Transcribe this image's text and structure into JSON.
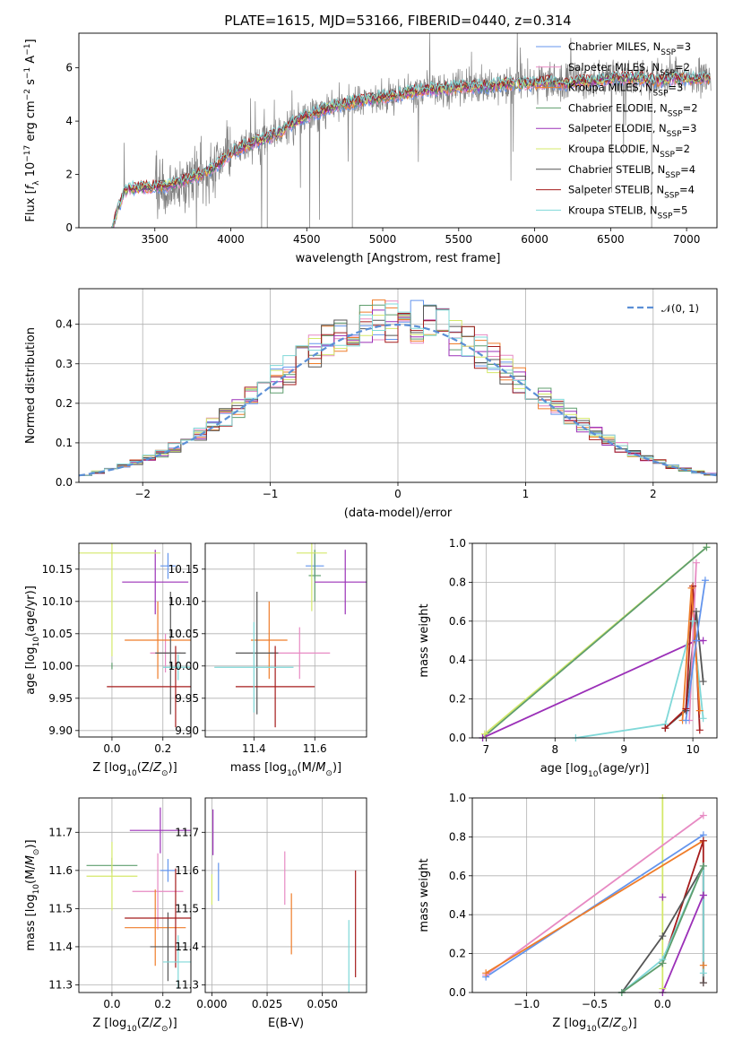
{
  "colors": {
    "Chabrier MILES": "#6495ed",
    "Salpeter MILES": "#e78ac3",
    "Kroupa MILES": "#ef7d2a",
    "Chabrier ELODIE": "#5f9e6e",
    "Salpeter ELODIE": "#9b30b8",
    "Kroupa ELODIE": "#d4e86a",
    "Chabrier STELIB": "#555555",
    "Salpeter STELIB": "#a51c1c",
    "Kroupa STELIB": "#7fd8d8"
  },
  "chart_data": [
    {
      "id": "spectrum",
      "type": "line",
      "title": "PLATE=1615, MJD=53166, FIBERID=0440, z=0.314",
      "xlabel": "wavelength [Angstrom, rest frame]",
      "ylabel": "Flux [f_λ 10^-17 erg cm^-2 s^-1 A^-1]",
      "xlim": [
        3000,
        7200
      ],
      "ylim": [
        0,
        7.3
      ],
      "xticks": [
        3500,
        4000,
        4500,
        5000,
        5500,
        6000,
        6500,
        7000
      ],
      "yticks": [
        0,
        2,
        4,
        6
      ],
      "grid": false,
      "legend_position": "top-right",
      "data_series": {
        "name": "data",
        "color": "#808080"
      },
      "continuum": {
        "x": [
          3220,
          3300,
          3400,
          3500,
          3600,
          3700,
          3800,
          3900,
          4000,
          4100,
          4200,
          4300,
          4400,
          4500,
          4600,
          4700,
          4800,
          4900,
          5000,
          5100,
          5200,
          5300,
          5400,
          5500,
          5600,
          5700,
          5800,
          5900,
          6000,
          6100,
          6200,
          6300,
          6400,
          6500,
          6600,
          6700,
          6800,
          6900,
          7000,
          7100
        ],
        "y": [
          0.0,
          1.4,
          1.5,
          1.55,
          1.6,
          1.8,
          2.0,
          2.3,
          2.8,
          3.1,
          3.3,
          3.5,
          3.9,
          4.2,
          4.4,
          4.6,
          4.7,
          4.8,
          4.9,
          5.0,
          5.1,
          5.2,
          5.2,
          5.3,
          5.3,
          5.3,
          5.4,
          5.4,
          5.4,
          5.5,
          5.4,
          5.5,
          5.5,
          5.6,
          5.6,
          5.6,
          5.5,
          5.6,
          5.6,
          5.6
        ]
      },
      "series": [
        {
          "name": "Chabrier MILES",
          "label": "Chabrier MILES, N",
          "sub": "SSP",
          "n": "=3"
        },
        {
          "name": "Salpeter MILES",
          "label": "Salpeter MILES, N",
          "sub": "SSP",
          "n": "=2"
        },
        {
          "name": "Kroupa MILES",
          "label": "Kroupa MILES, N",
          "sub": "SSP",
          "n": "=3"
        },
        {
          "name": "Chabrier ELODIE",
          "label": "Chabrier ELODIE, N",
          "sub": "SSP",
          "n": "=2"
        },
        {
          "name": "Salpeter ELODIE",
          "label": "Salpeter ELODIE, N",
          "sub": "SSP",
          "n": "=3"
        },
        {
          "name": "Kroupa ELODIE",
          "label": "Kroupa ELODIE, N",
          "sub": "SSP",
          "n": "=2"
        },
        {
          "name": "Chabrier STELIB",
          "label": "Chabrier STELIB, N",
          "sub": "SSP",
          "n": "=4"
        },
        {
          "name": "Salpeter STELIB",
          "label": "Salpeter STELIB, N",
          "sub": "SSP",
          "n": "=4"
        },
        {
          "name": "Kroupa STELIB",
          "label": "Kroupa STELIB, N",
          "sub": "SSP",
          "n": "=5"
        }
      ]
    },
    {
      "id": "residuals",
      "type": "line",
      "xlabel": "(data-model)/error",
      "ylabel": "Normed distribution",
      "xlim": [
        -2.5,
        2.5
      ],
      "ylim": [
        0,
        0.49
      ],
      "xticks": [
        -2,
        -1,
        0,
        1,
        2
      ],
      "yticks": [
        0.0,
        0.1,
        0.2,
        0.3,
        0.4
      ],
      "grid": true,
      "legend_position": "top-right",
      "normal_label": "𝒩(0, 1)",
      "normal_color": "#5b8fd6"
    },
    {
      "id": "age-vs-Z",
      "type": "scatter",
      "xlabel": "Z [log10(Z/Z⊙)]",
      "ylabel": "age  [log10(age/yr)]",
      "xlim": [
        -0.13,
        0.31
      ],
      "ylim": [
        9.89,
        10.19
      ],
      "xticks": [
        0.0,
        0.2
      ],
      "yticks": [
        9.9,
        9.95,
        10.0,
        10.05,
        10.1,
        10.15
      ],
      "grid": true,
      "points": [
        {
          "series": "Chabrier MILES",
          "x": 0.22,
          "xerr": 0.03,
          "y": 10.155,
          "yerr": 0.02
        },
        {
          "series": "Salpeter MILES",
          "x": 0.21,
          "xerr": 0.06,
          "y": 10.02,
          "yerr": 0.03
        },
        {
          "series": "Kroupa MILES",
          "x": 0.18,
          "xerr": 0.13,
          "y": 10.04,
          "yerr": 0.06
        },
        {
          "series": "Chabrier ELODIE",
          "x": 0.0,
          "xerr": 0.0,
          "y": 10.0,
          "yerr": 0.005
        },
        {
          "series": "Salpeter ELODIE",
          "x": 0.17,
          "xerr": 0.13,
          "y": 10.13,
          "yerr": 0.05
        },
        {
          "series": "Kroupa ELODIE",
          "x": 0.0,
          "xerr": 0.19,
          "y": 10.175,
          "yerr": 0.16
        },
        {
          "series": "Chabrier STELIB",
          "x": 0.23,
          "xerr": 0.06,
          "y": 10.02,
          "yerr": 0.095
        },
        {
          "series": "Salpeter STELIB",
          "x": 0.25,
          "xerr": 0.27,
          "y": 9.968,
          "yerr": 0.063
        },
        {
          "series": "Kroupa STELIB",
          "x": 0.26,
          "xerr": 0.06,
          "y": 9.998,
          "yerr": 0.02
        }
      ]
    },
    {
      "id": "age-vs-mass",
      "type": "scatter",
      "xlabel": "mass [log10(M/M⊙)]",
      "ylabel": "",
      "xlim": [
        11.24,
        11.77
      ],
      "ylim": [
        9.89,
        10.19
      ],
      "xticks": [
        11.4,
        11.6
      ],
      "yticks": [
        9.9,
        9.95,
        10.0,
        10.05,
        10.1,
        10.15
      ],
      "grid": true,
      "points": [
        {
          "series": "Chabrier MILES",
          "x": 11.6,
          "xerr": 0.03,
          "y": 10.155,
          "yerr": 0.02
        },
        {
          "series": "Salpeter MILES",
          "x": 11.55,
          "xerr": 0.1,
          "y": 10.02,
          "yerr": 0.04
        },
        {
          "series": "Kroupa MILES",
          "x": 11.45,
          "xerr": 0.06,
          "y": 10.04,
          "yerr": 0.06
        },
        {
          "series": "Chabrier ELODIE",
          "x": 11.6,
          "xerr": 0.02,
          "y": 10.14,
          "yerr": 0.04
        },
        {
          "series": "Salpeter ELODIE",
          "x": 11.7,
          "xerr": 0.1,
          "y": 10.13,
          "yerr": 0.05
        },
        {
          "series": "Kroupa ELODIE",
          "x": 11.59,
          "xerr": 0.05,
          "y": 10.175,
          "yerr": 0.09
        },
        {
          "series": "Chabrier STELIB",
          "x": 11.41,
          "xerr": 0.07,
          "y": 10.02,
          "yerr": 0.095
        },
        {
          "series": "Salpeter STELIB",
          "x": 11.47,
          "xerr": 0.13,
          "y": 9.968,
          "yerr": 0.063
        },
        {
          "series": "Kroupa STELIB",
          "x": 11.4,
          "xerr": 0.13,
          "y": 9.998,
          "yerr": 0.07
        }
      ]
    },
    {
      "id": "weight-vs-age",
      "type": "line",
      "xlabel": "age  [log10(age/yr)]",
      "ylabel": "mass weight",
      "xlim": [
        6.8,
        10.35
      ],
      "ylim": [
        0,
        1.0
      ],
      "xticks": [
        7,
        8,
        9,
        10
      ],
      "yticks": [
        0.0,
        0.2,
        0.4,
        0.6,
        0.8,
        1.0
      ],
      "grid": true,
      "series": [
        {
          "name": "Kroupa ELODIE",
          "x": [
            6.98,
            10.2
          ],
          "y": [
            0.02,
            0.98
          ]
        },
        {
          "name": "Chabrier ELODIE",
          "x": [
            6.95,
            10.2
          ],
          "y": [
            0.0,
            0.98
          ]
        },
        {
          "name": "Salpeter ELODIE",
          "x": [
            6.95,
            10.05,
            10.15
          ],
          "y": [
            0.0,
            0.5,
            0.5
          ]
        },
        {
          "name": "Kroupa STELIB",
          "x": [
            8.3,
            9.6,
            10.0,
            10.15
          ],
          "y": [
            0.0,
            0.07,
            0.6,
            0.1
          ]
        },
        {
          "name": "Chabrier STELIB",
          "x": [
            9.6,
            9.9,
            10.05,
            10.15
          ],
          "y": [
            0.05,
            0.14,
            0.65,
            0.29
          ]
        },
        {
          "name": "Salpeter STELIB",
          "x": [
            9.6,
            9.9,
            10.0,
            10.1
          ],
          "y": [
            0.05,
            0.15,
            0.78,
            0.04
          ]
        },
        {
          "name": "Kroupa MILES",
          "x": [
            9.85,
            9.98,
            10.1
          ],
          "y": [
            0.09,
            0.77,
            0.14
          ]
        },
        {
          "name": "Salpeter MILES",
          "x": [
            9.95,
            10.05
          ],
          "y": [
            0.09,
            0.9
          ]
        },
        {
          "name": "Chabrier MILES",
          "x": [
            9.9,
            10.05,
            10.18
          ],
          "y": [
            0.09,
            0.5,
            0.81
          ]
        }
      ]
    },
    {
      "id": "mass-vs-Z",
      "type": "scatter",
      "xlabel": "Z [log10(Z/Z⊙)]",
      "ylabel": "mass [log10(M/M⊙)]",
      "xlim": [
        -0.13,
        0.31
      ],
      "ylim": [
        11.28,
        11.79
      ],
      "xticks": [
        0.0,
        0.2
      ],
      "yticks": [
        11.3,
        11.4,
        11.5,
        11.6,
        11.7
      ],
      "grid": true,
      "points": [
        {
          "series": "Chabrier MILES",
          "x": 0.22,
          "xerr": 0.03,
          "y": 11.6,
          "yerr": 0.03
        },
        {
          "series": "Salpeter MILES",
          "x": 0.18,
          "xerr": 0.1,
          "y": 11.545,
          "yerr": 0.1
        },
        {
          "series": "Kroupa MILES",
          "x": 0.17,
          "xerr": 0.12,
          "y": 11.45,
          "yerr": 0.1
        },
        {
          "series": "Chabrier ELODIE",
          "x": 0.0,
          "xerr": 0.1,
          "y": 11.613,
          "yerr": 0.02
        },
        {
          "series": "Salpeter ELODIE",
          "x": 0.19,
          "xerr": 0.12,
          "y": 11.705,
          "yerr": 0.06
        },
        {
          "series": "Kroupa ELODIE",
          "x": 0.0,
          "xerr": 0.1,
          "y": 11.585,
          "yerr": 0.09
        },
        {
          "series": "Chabrier STELIB",
          "x": 0.22,
          "xerr": 0.07,
          "y": 11.4,
          "yerr": 0.09
        },
        {
          "series": "Salpeter STELIB",
          "x": 0.25,
          "xerr": 0.2,
          "y": 11.475,
          "yerr": 0.13
        },
        {
          "series": "Kroupa STELIB",
          "x": 0.26,
          "xerr": 0.06,
          "y": 11.36,
          "yerr": 0.07
        }
      ]
    },
    {
      "id": "mass-vs-ebv",
      "type": "scatter",
      "xlabel": "E(B-V)",
      "ylabel": "",
      "xlim": [
        -0.003,
        0.07
      ],
      "ylim": [
        11.28,
        11.79
      ],
      "xticks": [
        0.0,
        0.025,
        0.05
      ],
      "xticklabels": [
        "0.000",
        "0.025",
        "0.050"
      ],
      "yticks": [
        11.3,
        11.4,
        11.5,
        11.6,
        11.7
      ],
      "grid": true,
      "points": [
        {
          "series": "Kroupa ELODIE",
          "x": 0.0,
          "y": 11.55,
          "yerr": 0.04
        },
        {
          "series": "Salpeter ELODIE",
          "x": 0.0005,
          "y": 11.7,
          "yerr": 0.06
        },
        {
          "series": "Chabrier MILES",
          "x": 0.003,
          "y": 11.57,
          "yerr": 0.05
        },
        {
          "series": "Salpeter MILES",
          "x": 0.033,
          "y": 11.58,
          "yerr": 0.07
        },
        {
          "series": "Kroupa MILES",
          "x": 0.036,
          "y": 11.46,
          "yerr": 0.08
        },
        {
          "series": "Kroupa STELIB",
          "x": 0.062,
          "y": 11.37,
          "yerr": 0.1
        },
        {
          "series": "Salpeter STELIB",
          "x": 0.065,
          "y": 11.46,
          "yerr": 0.14
        }
      ]
    },
    {
      "id": "weight-vs-Z",
      "type": "line",
      "xlabel": "Z [log10(Z/Z⊙)]",
      "ylabel": "mass weight",
      "xlim": [
        -1.4,
        0.4
      ],
      "ylim": [
        0,
        1.0
      ],
      "xticks": [
        -1.0,
        -0.5,
        0.0
      ],
      "yticks": [
        0.0,
        0.2,
        0.4,
        0.6,
        0.8,
        1.0
      ],
      "grid": true,
      "series": [
        {
          "name": "Kroupa ELODIE",
          "x": [
            0.0,
            0.0
          ],
          "y": [
            0.02,
            1.0
          ]
        },
        {
          "name": "Salpeter MILES",
          "x": [
            -1.3,
            0.3
          ],
          "y": [
            0.09,
            0.91
          ]
        },
        {
          "name": "Chabrier MILES",
          "x": [
            -1.3,
            0.3
          ],
          "y": [
            0.08,
            0.81
          ]
        },
        {
          "name": "Kroupa MILES",
          "x": [
            -1.3,
            0.3
          ],
          "y": [
            0.1,
            0.78
          ]
        },
        {
          "name": "Salpeter STELIB",
          "x": [
            0.0,
            0.3,
            0.3
          ],
          "y": [
            0.15,
            0.78,
            0.05
          ]
        },
        {
          "name": "Chabrier STELIB",
          "x": [
            -0.3,
            0.0,
            0.3,
            0.3
          ],
          "y": [
            0.0,
            0.29,
            0.65,
            0.05
          ]
        },
        {
          "name": "Salpeter ELODIE",
          "x": [
            0.0,
            0.3,
            0.3
          ],
          "y": [
            0.0,
            0.5,
            0.5
          ]
        },
        {
          "name": "Kroupa STELIB",
          "x": [
            -0.3,
            0.0,
            0.3,
            0.3
          ],
          "y": [
            0.0,
            0.17,
            0.65,
            0.1
          ]
        },
        {
          "name": "Chabrier ELODIE",
          "x": [
            -0.3,
            0.0,
            0.3
          ],
          "y": [
            0.0,
            0.15,
            0.65
          ]
        }
      ],
      "markers": [
        {
          "series": "Salpeter ELODIE",
          "x": 0.0,
          "y": 0.49
        },
        {
          "series": "Kroupa MILES",
          "x": 0.3,
          "y": 0.14
        }
      ]
    }
  ]
}
